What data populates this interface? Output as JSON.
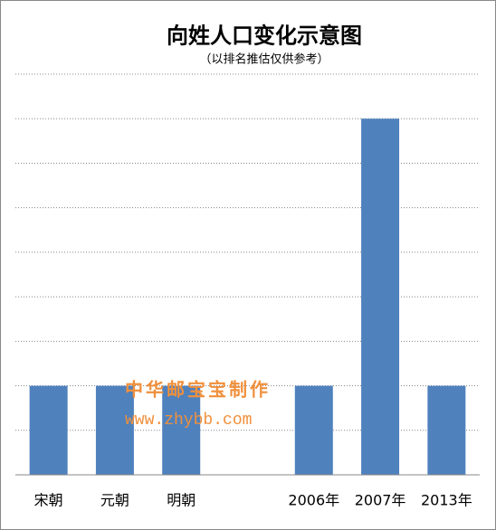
{
  "chart_data": {
    "type": "bar",
    "title": "向姓人口变化示意图",
    "subtitle": "（以排名推估仅供参考）",
    "annotations": [
      "中华邮宝宝制作",
      "www.zhybb.com"
    ],
    "categories": [
      "宋朝",
      "元朝",
      "明朝",
      null,
      "2006年",
      "2007年",
      "2013年"
    ],
    "values": [
      2,
      2,
      2,
      null,
      2,
      8,
      2
    ],
    "color": "#4f81bd",
    "ylim": [
      0,
      9
    ],
    "yticks": [
      0,
      1,
      2,
      3,
      4,
      5,
      6,
      7,
      8,
      9
    ],
    "grid": true
  }
}
